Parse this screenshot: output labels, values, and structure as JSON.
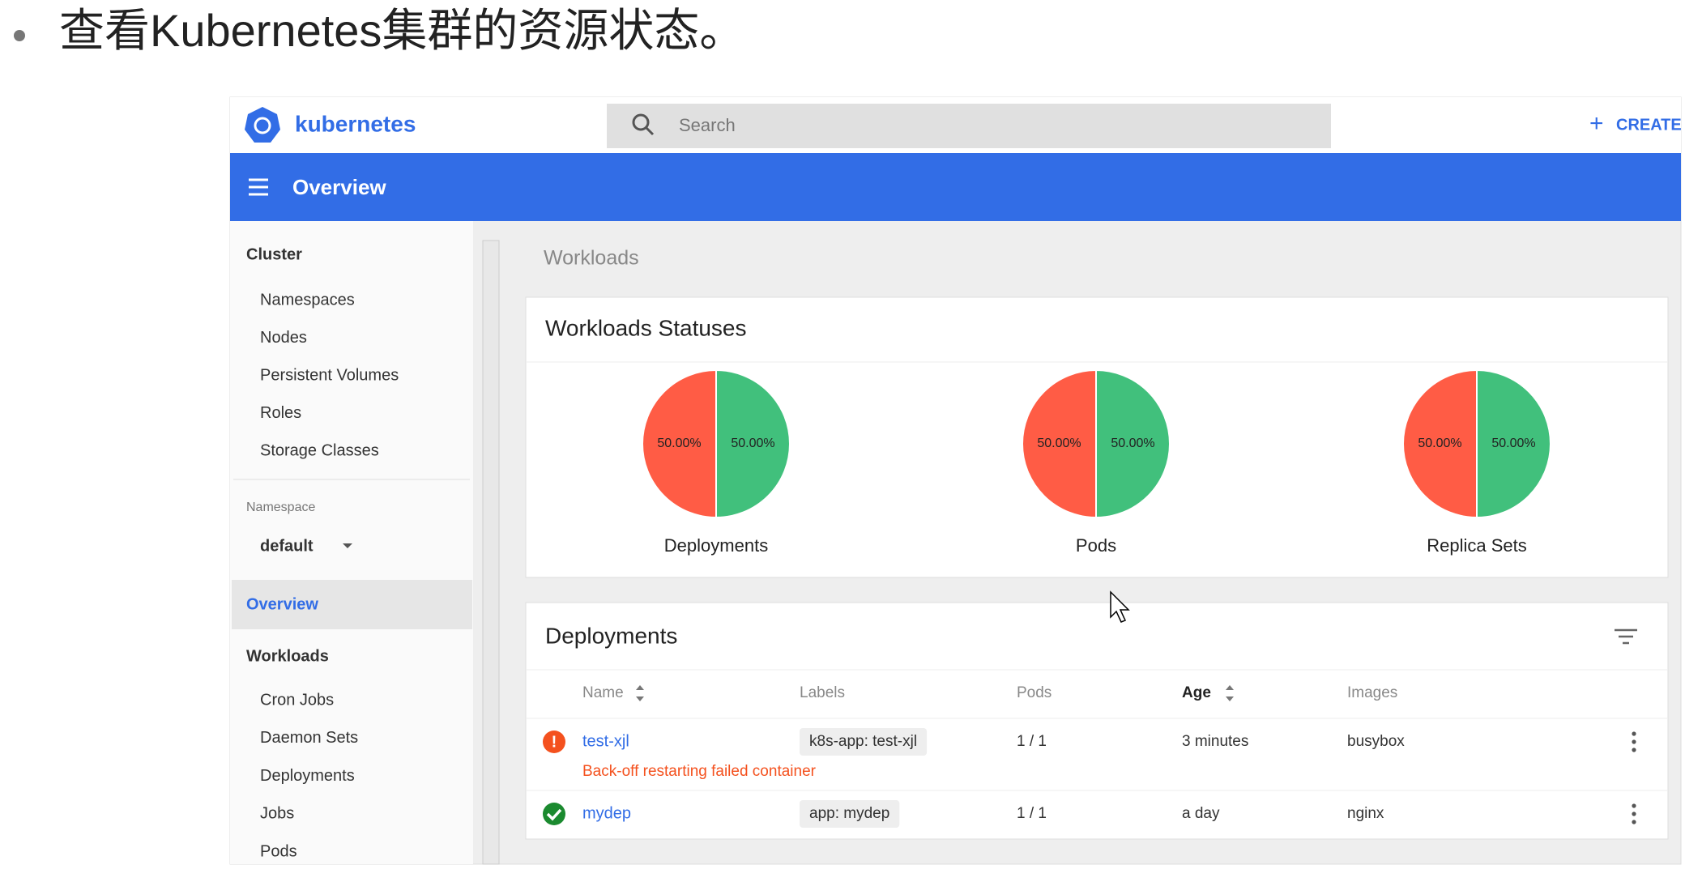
{
  "slide": {
    "bullet": "查看Kubernetes集群的资源状态。"
  },
  "header": {
    "brand": "kubernetes",
    "search_placeholder": "Search",
    "create": "CREATE",
    "page_title": "Overview"
  },
  "sidebar": {
    "cluster": {
      "title": "Cluster",
      "items": [
        "Namespaces",
        "Nodes",
        "Persistent Volumes",
        "Roles",
        "Storage Classes"
      ]
    },
    "namespace": {
      "label": "Namespace",
      "value": "default"
    },
    "overview": "Overview",
    "workloads": {
      "title": "Workloads",
      "items": [
        "Cron Jobs",
        "Daemon Sets",
        "Deployments",
        "Jobs",
        "Pods"
      ]
    }
  },
  "main": {
    "section": "Workloads",
    "statuses": {
      "title": "Workloads Statuses",
      "charts": [
        {
          "type": "pie",
          "name": "Deployments",
          "colors": [
            "#41c07c",
            "#ff5c45"
          ],
          "values": [
            50,
            50
          ],
          "value_labels": [
            "50.00%",
            "50.00%"
          ]
        },
        {
          "type": "pie",
          "name": "Pods",
          "colors": [
            "#41c07c",
            "#ff5c45"
          ],
          "values": [
            50,
            50
          ],
          "value_labels": [
            "50.00%",
            "50.00%"
          ]
        },
        {
          "type": "pie",
          "name": "Replica Sets",
          "colors": [
            "#41c07c",
            "#ff5c45"
          ],
          "values": [
            50,
            50
          ],
          "value_labels": [
            "50.00%",
            "50.00%"
          ]
        }
      ]
    },
    "deployments": {
      "title": "Deployments",
      "columns": [
        "Name",
        "Labels",
        "Pods",
        "Age",
        "Images"
      ],
      "rows": [
        {
          "status": "error",
          "name": "test-xjl",
          "labels": "k8s-app: test-xjl",
          "pods": "1 / 1",
          "age": "3 minutes",
          "images": "busybox",
          "message": "Back-off restarting failed container"
        },
        {
          "status": "ok",
          "name": "mydep",
          "labels": "app: mydep",
          "pods": "1 / 1",
          "age": "a day",
          "images": "nginx"
        }
      ]
    }
  }
}
